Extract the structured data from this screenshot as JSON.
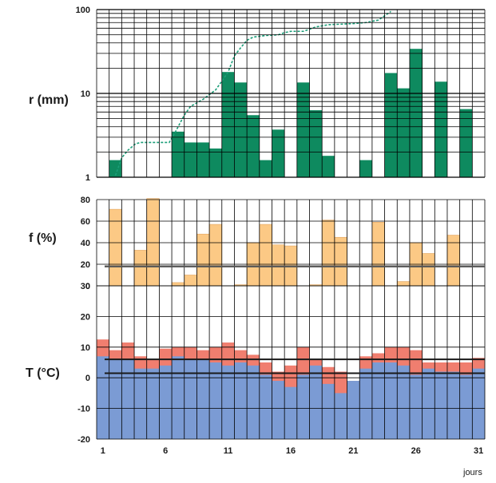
{
  "chart_data": [
    {
      "type": "bar",
      "ylabel": "r (mm)",
      "yscale": "log",
      "ylim": [
        1,
        100
      ],
      "yticks": [
        "1",
        "10",
        "100"
      ],
      "grid": true,
      "colors": {
        "bars": "#0e8a5f",
        "cumulative": "#1a9e78"
      },
      "x": [
        1,
        2,
        3,
        4,
        5,
        6,
        7,
        8,
        9,
        10,
        11,
        12,
        13,
        14,
        15,
        16,
        17,
        18,
        19,
        20,
        21,
        22,
        23,
        24,
        25,
        26,
        27,
        28,
        29,
        30,
        31
      ],
      "values": [
        null,
        1.6,
        null,
        null,
        null,
        null,
        3.5,
        2.6,
        2.6,
        2.2,
        18,
        13.5,
        5.5,
        1.6,
        3.7,
        null,
        13.5,
        6.3,
        1.8,
        null,
        null,
        1.6,
        null,
        17.5,
        11.5,
        34,
        null,
        13.8,
        null,
        6.5,
        null
      ],
      "cumulative": {
        "style": "dashed",
        "x": [
          2,
          2.5,
          3,
          3.6,
          4,
          5,
          6,
          6.3,
          6.8,
          7.5,
          8,
          9,
          10,
          10.5,
          11,
          11.5,
          12,
          12.5,
          13,
          14,
          15,
          15.5,
          16,
          17,
          18,
          19,
          20,
          21,
          22,
          23,
          24
        ],
        "values": [
          1.05,
          1.7,
          2.1,
          2.5,
          2.6,
          2.6,
          2.6,
          2.6,
          3.5,
          5.5,
          7,
          8.5,
          11,
          14,
          18,
          28,
          35,
          43,
          47,
          49,
          50,
          53,
          55,
          55,
          62,
          66,
          67,
          68,
          70,
          75,
          95
        ]
      }
    },
    {
      "type": "bar",
      "ylabel": "f (%)",
      "ylim": [
        0,
        80
      ],
      "yticks": [
        "0",
        "20",
        "40",
        "60",
        "80"
      ],
      "reference_line": 18,
      "colors": {
        "bars": "#fcc985",
        "edge": "#e0a45e",
        "reference": "#555555"
      },
      "x": [
        1,
        2,
        3,
        4,
        5,
        6,
        7,
        8,
        9,
        10,
        11,
        12,
        13,
        14,
        15,
        16,
        17,
        18,
        19,
        20,
        21,
        22,
        23,
        24,
        25,
        26,
        27,
        28,
        29,
        30,
        31
      ],
      "values": [
        0,
        71,
        0,
        33,
        81,
        0,
        3,
        10,
        48,
        57,
        0,
        1,
        40,
        57,
        38,
        37,
        0,
        1,
        61,
        45,
        0,
        0,
        59,
        0,
        4,
        40,
        30,
        0,
        47,
        0,
        0
      ]
    },
    {
      "type": "bar",
      "ylabel": "T (°C)",
      "ylim": [
        -20,
        30
      ],
      "yticks": [
        "-20",
        "-10",
        "0",
        "10",
        "20",
        "30"
      ],
      "xticks": [
        "1",
        "6",
        "11",
        "16",
        "21",
        "26",
        "31"
      ],
      "xlabel": "jours",
      "reference_lines": [
        6,
        1.5
      ],
      "colors": {
        "tmax": "#f07e6f",
        "tmin": "#7b9bd4",
        "reference": "#1a1a1a"
      },
      "x": [
        1,
        2,
        3,
        4,
        5,
        6,
        7,
        8,
        9,
        10,
        11,
        12,
        13,
        14,
        15,
        16,
        17,
        18,
        19,
        20,
        21,
        22,
        23,
        24,
        25,
        26,
        27,
        28,
        29,
        30,
        31
      ],
      "series": [
        {
          "values": [
            12.5,
            9,
            11.5,
            7,
            6,
            9.5,
            10,
            10,
            9,
            10,
            11.5,
            9,
            7.5,
            5,
            2,
            4,
            10,
            6,
            3.5,
            2,
            -1,
            7,
            8,
            10,
            10,
            9,
            5,
            5,
            5,
            5,
            6.5
          ]
        },
        {
          "values": [
            7,
            6,
            6,
            3,
            3,
            4,
            7,
            6,
            6,
            5,
            4,
            5,
            4,
            1,
            -1,
            -3,
            1,
            4,
            -2,
            -5,
            -1,
            3,
            5,
            5,
            4,
            1,
            3,
            2,
            2,
            1,
            3
          ]
        }
      ]
    }
  ]
}
